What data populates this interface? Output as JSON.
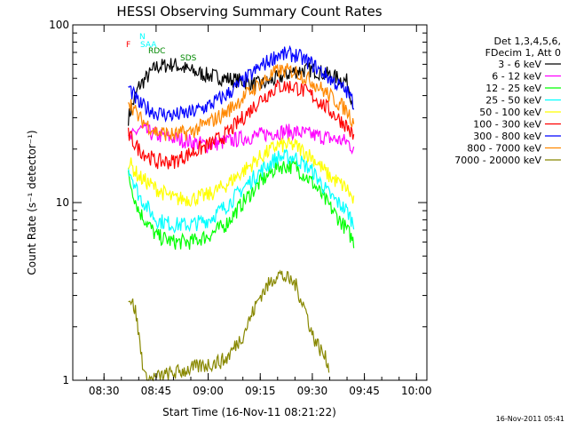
{
  "chart_data": {
    "type": "line",
    "title": "HESSI Observing Summary Count Rates",
    "xlabel": "Start Time (16-Nov-11 08:21:22)",
    "ylabel": "Count Rate (s⁻¹ detector⁻¹)",
    "xlim": [
      "08:21",
      "10:03"
    ],
    "ylim": [
      1,
      100
    ],
    "yscale": "log",
    "x_ticks": [
      "08:30",
      "08:45",
      "09:00",
      "09:15",
      "09:30",
      "09:45",
      "10:00"
    ],
    "y_ticks": [
      "1",
      "10",
      "100"
    ],
    "legend_position": "right",
    "legend_header": [
      "Det 1,3,4,5,6,",
      "FDecim 1, Att 0"
    ],
    "series": [
      {
        "name": "3 - 6 keV",
        "color": "#000000",
        "x": [
          "08:37",
          "08:40",
          "08:45",
          "08:50",
          "08:55",
          "09:00",
          "09:05",
          "09:10",
          "09:15",
          "09:20",
          "09:25",
          "09:30",
          "09:35",
          "09:40",
          "09:42"
        ],
        "values": [
          30,
          45,
          58,
          60,
          55,
          52,
          50,
          48,
          46,
          50,
          55,
          56,
          52,
          48,
          35
        ]
      },
      {
        "name": "6 - 12 keV",
        "color": "#ff00ff",
        "x": [
          "08:37",
          "08:40",
          "08:45",
          "08:50",
          "08:55",
          "09:00",
          "09:05",
          "09:10",
          "09:15",
          "09:20",
          "09:25",
          "09:30",
          "09:35",
          "09:40",
          "09:42"
        ],
        "values": [
          22,
          26,
          24,
          23,
          22,
          21,
          22,
          23,
          24,
          25,
          25,
          24,
          23,
          22,
          20
        ]
      },
      {
        "name": "12 - 25 keV",
        "color": "#00ff00",
        "x": [
          "08:37",
          "08:40",
          "08:45",
          "08:50",
          "08:55",
          "09:00",
          "09:05",
          "09:10",
          "09:15",
          "09:20",
          "09:25",
          "09:30",
          "09:35",
          "09:40",
          "09:42"
        ],
        "values": [
          14,
          9,
          6.5,
          6,
          6,
          6.5,
          7.5,
          10,
          13,
          16,
          16,
          13,
          9.5,
          7,
          6
        ]
      },
      {
        "name": "25 - 50 keV",
        "color": "#00ffff",
        "x": [
          "08:37",
          "08:40",
          "08:45",
          "08:50",
          "08:55",
          "09:00",
          "09:05",
          "09:10",
          "09:15",
          "09:20",
          "09:25",
          "09:30",
          "09:35",
          "09:40",
          "09:42"
        ],
        "values": [
          16,
          11,
          8,
          7.5,
          7.5,
          8,
          9.5,
          12,
          15,
          18,
          18,
          15,
          11,
          9,
          7.5
        ]
      },
      {
        "name": "50 - 100 keV",
        "color": "#ffff00",
        "x": [
          "08:37",
          "08:40",
          "08:45",
          "08:50",
          "08:55",
          "09:00",
          "09:05",
          "09:10",
          "09:15",
          "09:20",
          "09:25",
          "09:30",
          "09:35",
          "09:40",
          "09:42"
        ],
        "values": [
          17,
          14,
          12,
          10.5,
          10.5,
          11,
          12.5,
          15,
          18,
          21,
          21,
          18,
          14,
          12,
          10
        ]
      },
      {
        "name": "100 - 300 keV",
        "color": "#ff0000",
        "x": [
          "08:37",
          "08:40",
          "08:45",
          "08:50",
          "08:55",
          "09:00",
          "09:05",
          "09:10",
          "09:15",
          "09:20",
          "09:25",
          "09:30",
          "09:35",
          "09:40",
          "09:42"
        ],
        "values": [
          24,
          20,
          17,
          17,
          19,
          21,
          24,
          30,
          38,
          45,
          45,
          40,
          33,
          27,
          23
        ]
      },
      {
        "name": "300 - 800 keV",
        "color": "#0000ff",
        "x": [
          "08:37",
          "08:40",
          "08:45",
          "08:50",
          "08:55",
          "09:00",
          "09:05",
          "09:10",
          "09:15",
          "09:20",
          "09:25",
          "09:30",
          "09:35",
          "09:40",
          "09:42"
        ],
        "values": [
          45,
          36,
          32,
          31,
          32,
          35,
          40,
          48,
          58,
          68,
          68,
          60,
          50,
          42,
          36
        ]
      },
      {
        "name": "800 - 7000 keV",
        "color": "#ff8800",
        "x": [
          "08:37",
          "08:40",
          "08:45",
          "08:50",
          "08:55",
          "09:00",
          "09:05",
          "09:10",
          "09:15",
          "09:20",
          "09:25",
          "09:30",
          "09:35",
          "09:40",
          "09:42"
        ],
        "values": [
          38,
          30,
          25,
          24,
          25,
          28,
          32,
          39,
          47,
          55,
          55,
          48,
          40,
          33,
          28
        ]
      },
      {
        "name": "7000 - 20000 keV",
        "color": "#888800",
        "x": [
          "08:37",
          "08:39",
          "08:41",
          "08:42",
          "09:05",
          "09:10",
          "09:15",
          "09:20",
          "09:25",
          "09:28",
          "09:30",
          "09:35"
        ],
        "values": [
          3,
          2.5,
          1.3,
          1,
          1.3,
          1.8,
          3,
          4,
          3.5,
          2.5,
          1.8,
          1.2
        ]
      }
    ],
    "annotations": [
      {
        "text": "N",
        "color": "#00ffff"
      },
      {
        "text": "F",
        "color": "#ff0000"
      },
      {
        "text": "SAA",
        "color": "#00ffff"
      },
      {
        "text": "RDC",
        "color": "#008800"
      },
      {
        "text": "SDS",
        "color": "#008800"
      }
    ],
    "timestamp": "16-Nov-2011 05:41"
  }
}
